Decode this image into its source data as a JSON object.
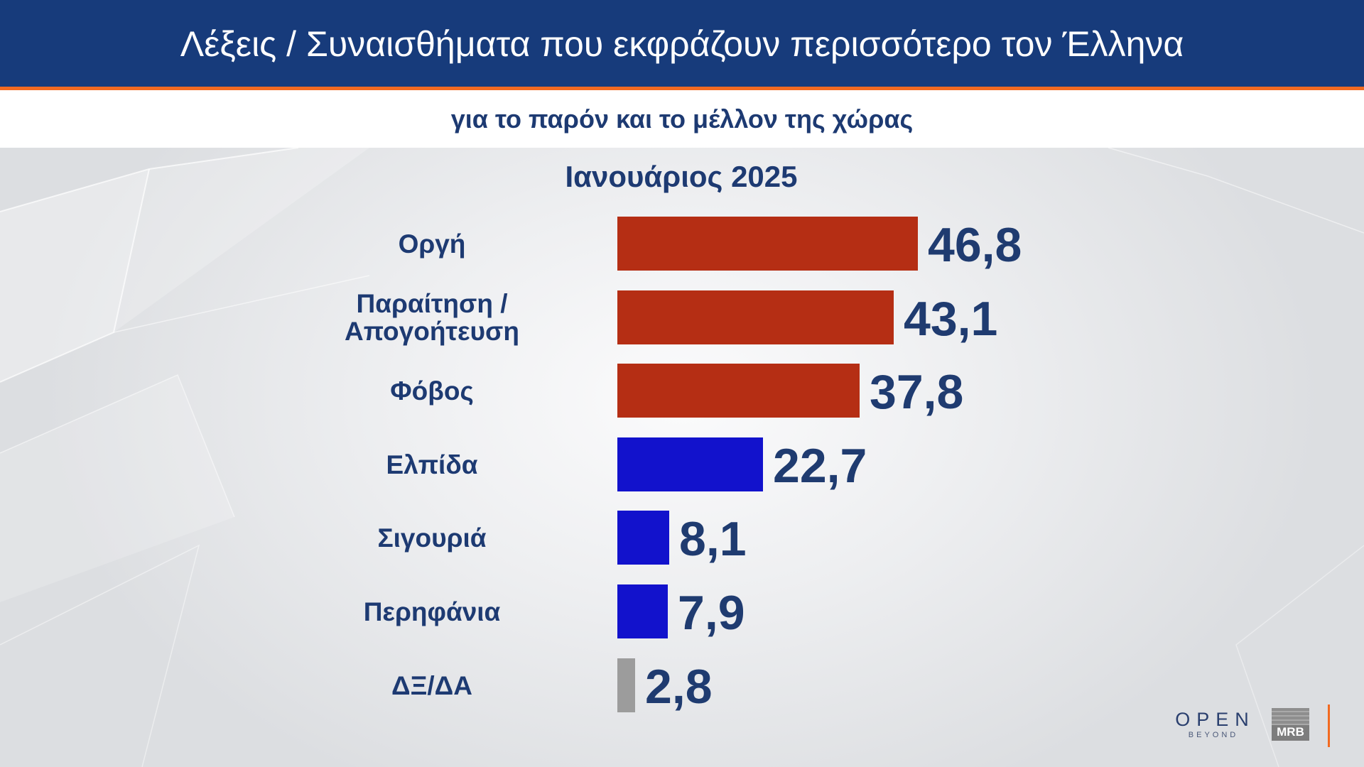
{
  "header": {
    "title": "Λέξεις / Συναισθήματα που εκφράζουν περισσότερο τον Έλληνα",
    "subtitle": "για το παρόν και το μέλλον της χώρας"
  },
  "colors": {
    "header_background": "#173b7b",
    "accent_orange": "#f26a21",
    "text_dark_blue": "#1d3a72"
  },
  "chart_data": {
    "type": "bar",
    "orientation": "horizontal",
    "title": "Ιανουάριος 2025",
    "categories": [
      "Οργή",
      "Παραίτηση / Απογοήτευση",
      "Φόβος",
      "Ελπίδα",
      "Σιγουριά",
      "Περηφάνια",
      "ΔΞ/ΔΑ"
    ],
    "values": [
      46.8,
      43.1,
      37.8,
      22.7,
      8.1,
      7.9,
      2.8
    ],
    "value_labels": [
      "46,8",
      "43,1",
      "37,8",
      "22,7",
      "8,1",
      "7,9",
      "2,8"
    ],
    "colors": [
      "#b52e14",
      "#b52e14",
      "#b52e14",
      "#1212cc",
      "#1212cc",
      "#1212cc",
      "#9c9c9c"
    ],
    "xlabel": "",
    "ylabel": "",
    "grid": false,
    "legend": "none"
  },
  "logos": {
    "open": "OPEN",
    "open_tagline": "BEYOND",
    "mrb": "MRB"
  }
}
